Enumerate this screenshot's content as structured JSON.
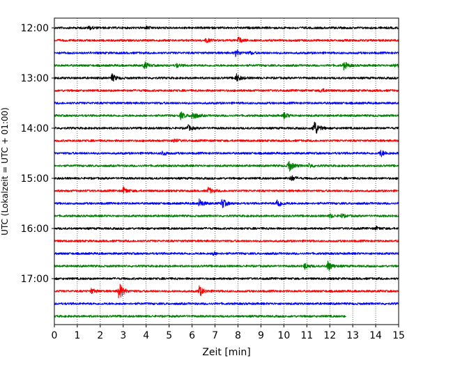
{
  "chart_data": {
    "type": "line",
    "subtype": "helicorder seismogram",
    "title": "",
    "xlabel": "Zeit  [min]",
    "ylabel": "UTC (Lokalzeit = UTC + 01:00)",
    "xlim": [
      0,
      15
    ],
    "xticks": [
      "0",
      "1",
      "2",
      "3",
      "4",
      "5",
      "6",
      "7",
      "8",
      "9",
      "10",
      "11",
      "12",
      "13",
      "14",
      "15"
    ],
    "x_grid": "dotted vertical lines at each minute",
    "yticks": [
      {
        "label": "12:00",
        "row": 0
      },
      {
        "label": "13:00",
        "row": 4
      },
      {
        "label": "14:00",
        "row": 8
      },
      {
        "label": "15:00",
        "row": 12
      },
      {
        "label": "16:00",
        "row": 16
      },
      {
        "label": "17:00",
        "row": 20
      }
    ],
    "trace_length_min": 15,
    "trace_colors_cycle": [
      "#000000",
      "#ff0000",
      "#0000ff",
      "#008000"
    ],
    "rows": [
      {
        "start": "12:00",
        "color": "#000000",
        "events": [
          {
            "t": 1.5,
            "amp": 0.3
          },
          {
            "t": 4.0,
            "amp": 0.2
          }
        ]
      },
      {
        "start": "12:15",
        "color": "#ff0000",
        "events": [
          {
            "t": 6.6,
            "amp": 0.35
          },
          {
            "t": 8.0,
            "amp": 0.55
          }
        ]
      },
      {
        "start": "12:30",
        "color": "#0000ff",
        "events": [
          {
            "t": 7.9,
            "amp": 0.55
          },
          {
            "t": 8.5,
            "amp": 0.2
          }
        ]
      },
      {
        "start": "12:45",
        "color": "#008000",
        "events": [
          {
            "t": 3.9,
            "amp": 0.6
          },
          {
            "t": 5.3,
            "amp": 0.3
          },
          {
            "t": 12.6,
            "amp": 0.65
          },
          {
            "t": 14.8,
            "amp": 0.3
          }
        ]
      },
      {
        "start": "13:00",
        "color": "#000000",
        "events": [
          {
            "t": 2.5,
            "amp": 0.65
          },
          {
            "t": 7.9,
            "amp": 0.75
          }
        ]
      },
      {
        "start": "13:15",
        "color": "#ff0000",
        "events": [
          {
            "t": 11.6,
            "amp": 0.35
          }
        ]
      },
      {
        "start": "13:30",
        "color": "#0000ff",
        "events": []
      },
      {
        "start": "13:45",
        "color": "#008000",
        "events": [
          {
            "t": 5.5,
            "amp": 0.6
          },
          {
            "t": 6.0,
            "amp": 0.8
          },
          {
            "t": 10.0,
            "amp": 0.5
          }
        ]
      },
      {
        "start": "14:00",
        "color": "#000000",
        "events": [
          {
            "t": 5.8,
            "amp": 0.5
          },
          {
            "t": 11.3,
            "amp": 1.6
          }
        ]
      },
      {
        "start": "14:15",
        "color": "#ff0000",
        "events": [
          {
            "t": 5.2,
            "amp": 0.3
          }
        ]
      },
      {
        "start": "14:30",
        "color": "#0000ff",
        "events": [
          {
            "t": 4.7,
            "amp": 0.35
          },
          {
            "t": 14.2,
            "amp": 0.6
          }
        ]
      },
      {
        "start": "14:45",
        "color": "#008000",
        "events": [
          {
            "t": 10.2,
            "amp": 1.1
          },
          {
            "t": 11.1,
            "amp": 0.35
          }
        ]
      },
      {
        "start": "15:00",
        "color": "#000000",
        "events": [
          {
            "t": 10.3,
            "amp": 0.5
          }
        ]
      },
      {
        "start": "15:15",
        "color": "#ff0000",
        "events": [
          {
            "t": 3.0,
            "amp": 0.55
          },
          {
            "t": 6.7,
            "amp": 0.55
          }
        ]
      },
      {
        "start": "15:30",
        "color": "#0000ff",
        "events": [
          {
            "t": 6.3,
            "amp": 0.7
          },
          {
            "t": 7.3,
            "amp": 0.8
          },
          {
            "t": 9.7,
            "amp": 0.8
          }
        ]
      },
      {
        "start": "15:45",
        "color": "#008000",
        "events": [
          {
            "t": 12.0,
            "amp": 0.3
          },
          {
            "t": 12.5,
            "amp": 0.3
          }
        ]
      },
      {
        "start": "16:00",
        "color": "#000000",
        "events": [
          {
            "t": 14.0,
            "amp": 0.25
          }
        ]
      },
      {
        "start": "16:15",
        "color": "#ff0000",
        "events": []
      },
      {
        "start": "16:30",
        "color": "#0000ff",
        "events": [
          {
            "t": 6.9,
            "amp": 0.25
          }
        ]
      },
      {
        "start": "16:45",
        "color": "#008000",
        "events": [
          {
            "t": 10.9,
            "amp": 0.5
          },
          {
            "t": 11.9,
            "amp": 0.9
          }
        ]
      },
      {
        "start": "17:00",
        "color": "#000000",
        "events": []
      },
      {
        "start": "17:15",
        "color": "#ff0000",
        "events": [
          {
            "t": 1.6,
            "amp": 0.4
          },
          {
            "t": 2.8,
            "amp": 1.6
          },
          {
            "t": 6.3,
            "amp": 0.9
          }
        ]
      },
      {
        "start": "17:30",
        "color": "#0000ff",
        "events": []
      },
      {
        "start": "17:45",
        "color": "#008000",
        "events": [],
        "end_t": 12.7
      }
    ]
  }
}
